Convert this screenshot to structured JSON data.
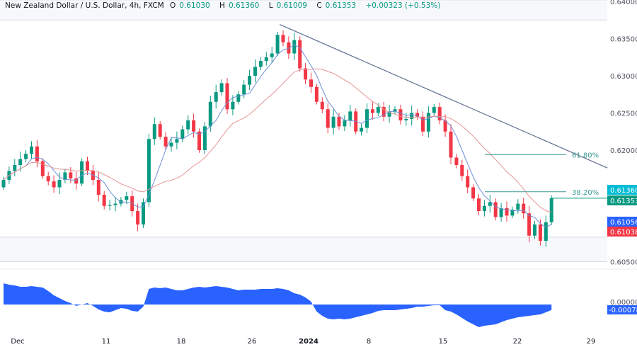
{
  "header": {
    "title": "New Zealand Dollar / U.S. Dollar, 4h, FXCM",
    "open_label": "O",
    "open": "0.61030",
    "high_label": "H",
    "high": "0.61360",
    "low_label": "L",
    "low": "0.61009",
    "close_label": "C",
    "close": "0.61353",
    "change": "+0.00323 (+0.53%)"
  },
  "colors": {
    "up": "#089981",
    "down": "#f23645",
    "fast_ma": "#6f8fd8",
    "slow_ma": "#e59494",
    "trendline": "#5d6f8f",
    "fib": "#3a9a94",
    "oscillator": "#2962ff",
    "tag_high": "#00bcd4",
    "tag_close": "#089981",
    "tag_blue": "#2962ff",
    "tag_red": "#f23645"
  },
  "chart_data": {
    "type": "candlestick",
    "title": "",
    "price_axis": {
      "ticks": [
        "0.64000",
        "0.63500",
        "0.63000",
        "0.62500",
        "0.62000",
        "0.60500"
      ],
      "range": [
        0.604,
        0.6402
      ]
    },
    "time_axis": {
      "ticks": [
        "Dec",
        "11",
        "18",
        "26",
        "2024",
        "8",
        "15",
        "22",
        "29"
      ]
    },
    "first_open": 0.615,
    "closes": [
      0.616,
      0.6172,
      0.618,
      0.6188,
      0.6195,
      0.6205,
      0.6185,
      0.6165,
      0.6158,
      0.615,
      0.616,
      0.617,
      0.6162,
      0.6155,
      0.6185,
      0.6172,
      0.616,
      0.614,
      0.6125,
      0.6126,
      0.6128,
      0.6133,
      0.6138,
      0.6118,
      0.61,
      0.613,
      0.6215,
      0.6235,
      0.6218,
      0.6205,
      0.621,
      0.6215,
      0.6228,
      0.624,
      0.6225,
      0.62,
      0.6232,
      0.6265,
      0.6278,
      0.629,
      0.6255,
      0.6265,
      0.6275,
      0.6288,
      0.63,
      0.6312,
      0.632,
      0.6325,
      0.633,
      0.6355,
      0.6345,
      0.633,
      0.6348,
      0.631,
      0.6295,
      0.6285,
      0.6265,
      0.6255,
      0.623,
      0.6245,
      0.6232,
      0.624,
      0.6252,
      0.6225,
      0.623,
      0.6255,
      0.625,
      0.6258,
      0.6245,
      0.6252,
      0.6255,
      0.624,
      0.6242,
      0.625,
      0.6245,
      0.6225,
      0.625,
      0.6258,
      0.624,
      0.6225,
      0.619,
      0.618,
      0.6165,
      0.615,
      0.6135,
      0.6118,
      0.6125,
      0.613,
      0.611,
      0.6122,
      0.6112,
      0.612,
      0.6128,
      0.6115,
      0.6085,
      0.61,
      0.6078,
      0.6103,
      0.61353
    ],
    "oscillator": [
      0.003,
      0.0028,
      0.0027,
      0.0025,
      0.0025,
      0.0026,
      0.0025,
      0.0024,
      0.0019,
      0.0013,
      0.0009,
      0.0005,
      0.0002,
      -0.0002,
      0.0,
      0.0002,
      -0.0002,
      -0.0007,
      -0.001,
      -0.0011,
      -0.0008,
      -0.0005,
      -0.0006,
      -0.0009,
      -0.001,
      -0.0003,
      0.0022,
      0.0024,
      0.0023,
      0.0024,
      0.0022,
      0.002,
      0.002,
      0.0022,
      0.0024,
      0.0025,
      0.0024,
      0.0025,
      0.0026,
      0.0025,
      0.0024,
      0.0022,
      0.002,
      0.0021,
      0.0021,
      0.0021,
      0.0022,
      0.0022,
      0.0022,
      0.0023,
      0.0022,
      0.002,
      0.0016,
      0.0014,
      0.001,
      0.0004,
      -0.001,
      -0.0016,
      -0.002,
      -0.0021,
      -0.002,
      -0.0021,
      -0.002,
      -0.0018,
      -0.0016,
      -0.0014,
      -0.0012,
      -0.0009,
      -0.0008,
      -0.0008,
      -0.0008,
      -0.0007,
      -0.0006,
      -0.0005,
      -0.0003,
      -0.0003,
      -0.0002,
      -0.0001,
      -0.0001,
      -0.0008,
      -0.001,
      -0.0014,
      -0.0019,
      -0.0024,
      -0.0028,
      -0.0032,
      -0.003,
      -0.0029,
      -0.0028,
      -0.0025,
      -0.0022,
      -0.002,
      -0.0018,
      -0.0017,
      -0.0016,
      -0.0015,
      -0.0014,
      -0.0011,
      -0.00078
    ],
    "oscillator_axis": {
      "zero_label": "0.00000",
      "last_label": "-0.00078"
    },
    "trendline": {
      "from": {
        "index": 49.4,
        "price": 0.6369
      },
      "to": {
        "index": 108,
        "price": 0.6176
      }
    },
    "fib_levels": [
      {
        "label": "61.80%",
        "price": 0.6194
      },
      {
        "label": "38.20%",
        "price": 0.6144
      }
    ],
    "zones": [
      {
        "from": 0.6375,
        "to": 0.6402
      },
      {
        "from": 0.605,
        "to": 0.6083
      }
    ],
    "price_tags": [
      {
        "label": "0.61360",
        "role": "high"
      },
      {
        "label": "0.61353",
        "role": "close"
      },
      {
        "label": "0.61056",
        "role": "fast_ma"
      },
      {
        "label": "0.61038",
        "role": "slow_ma"
      }
    ]
  }
}
